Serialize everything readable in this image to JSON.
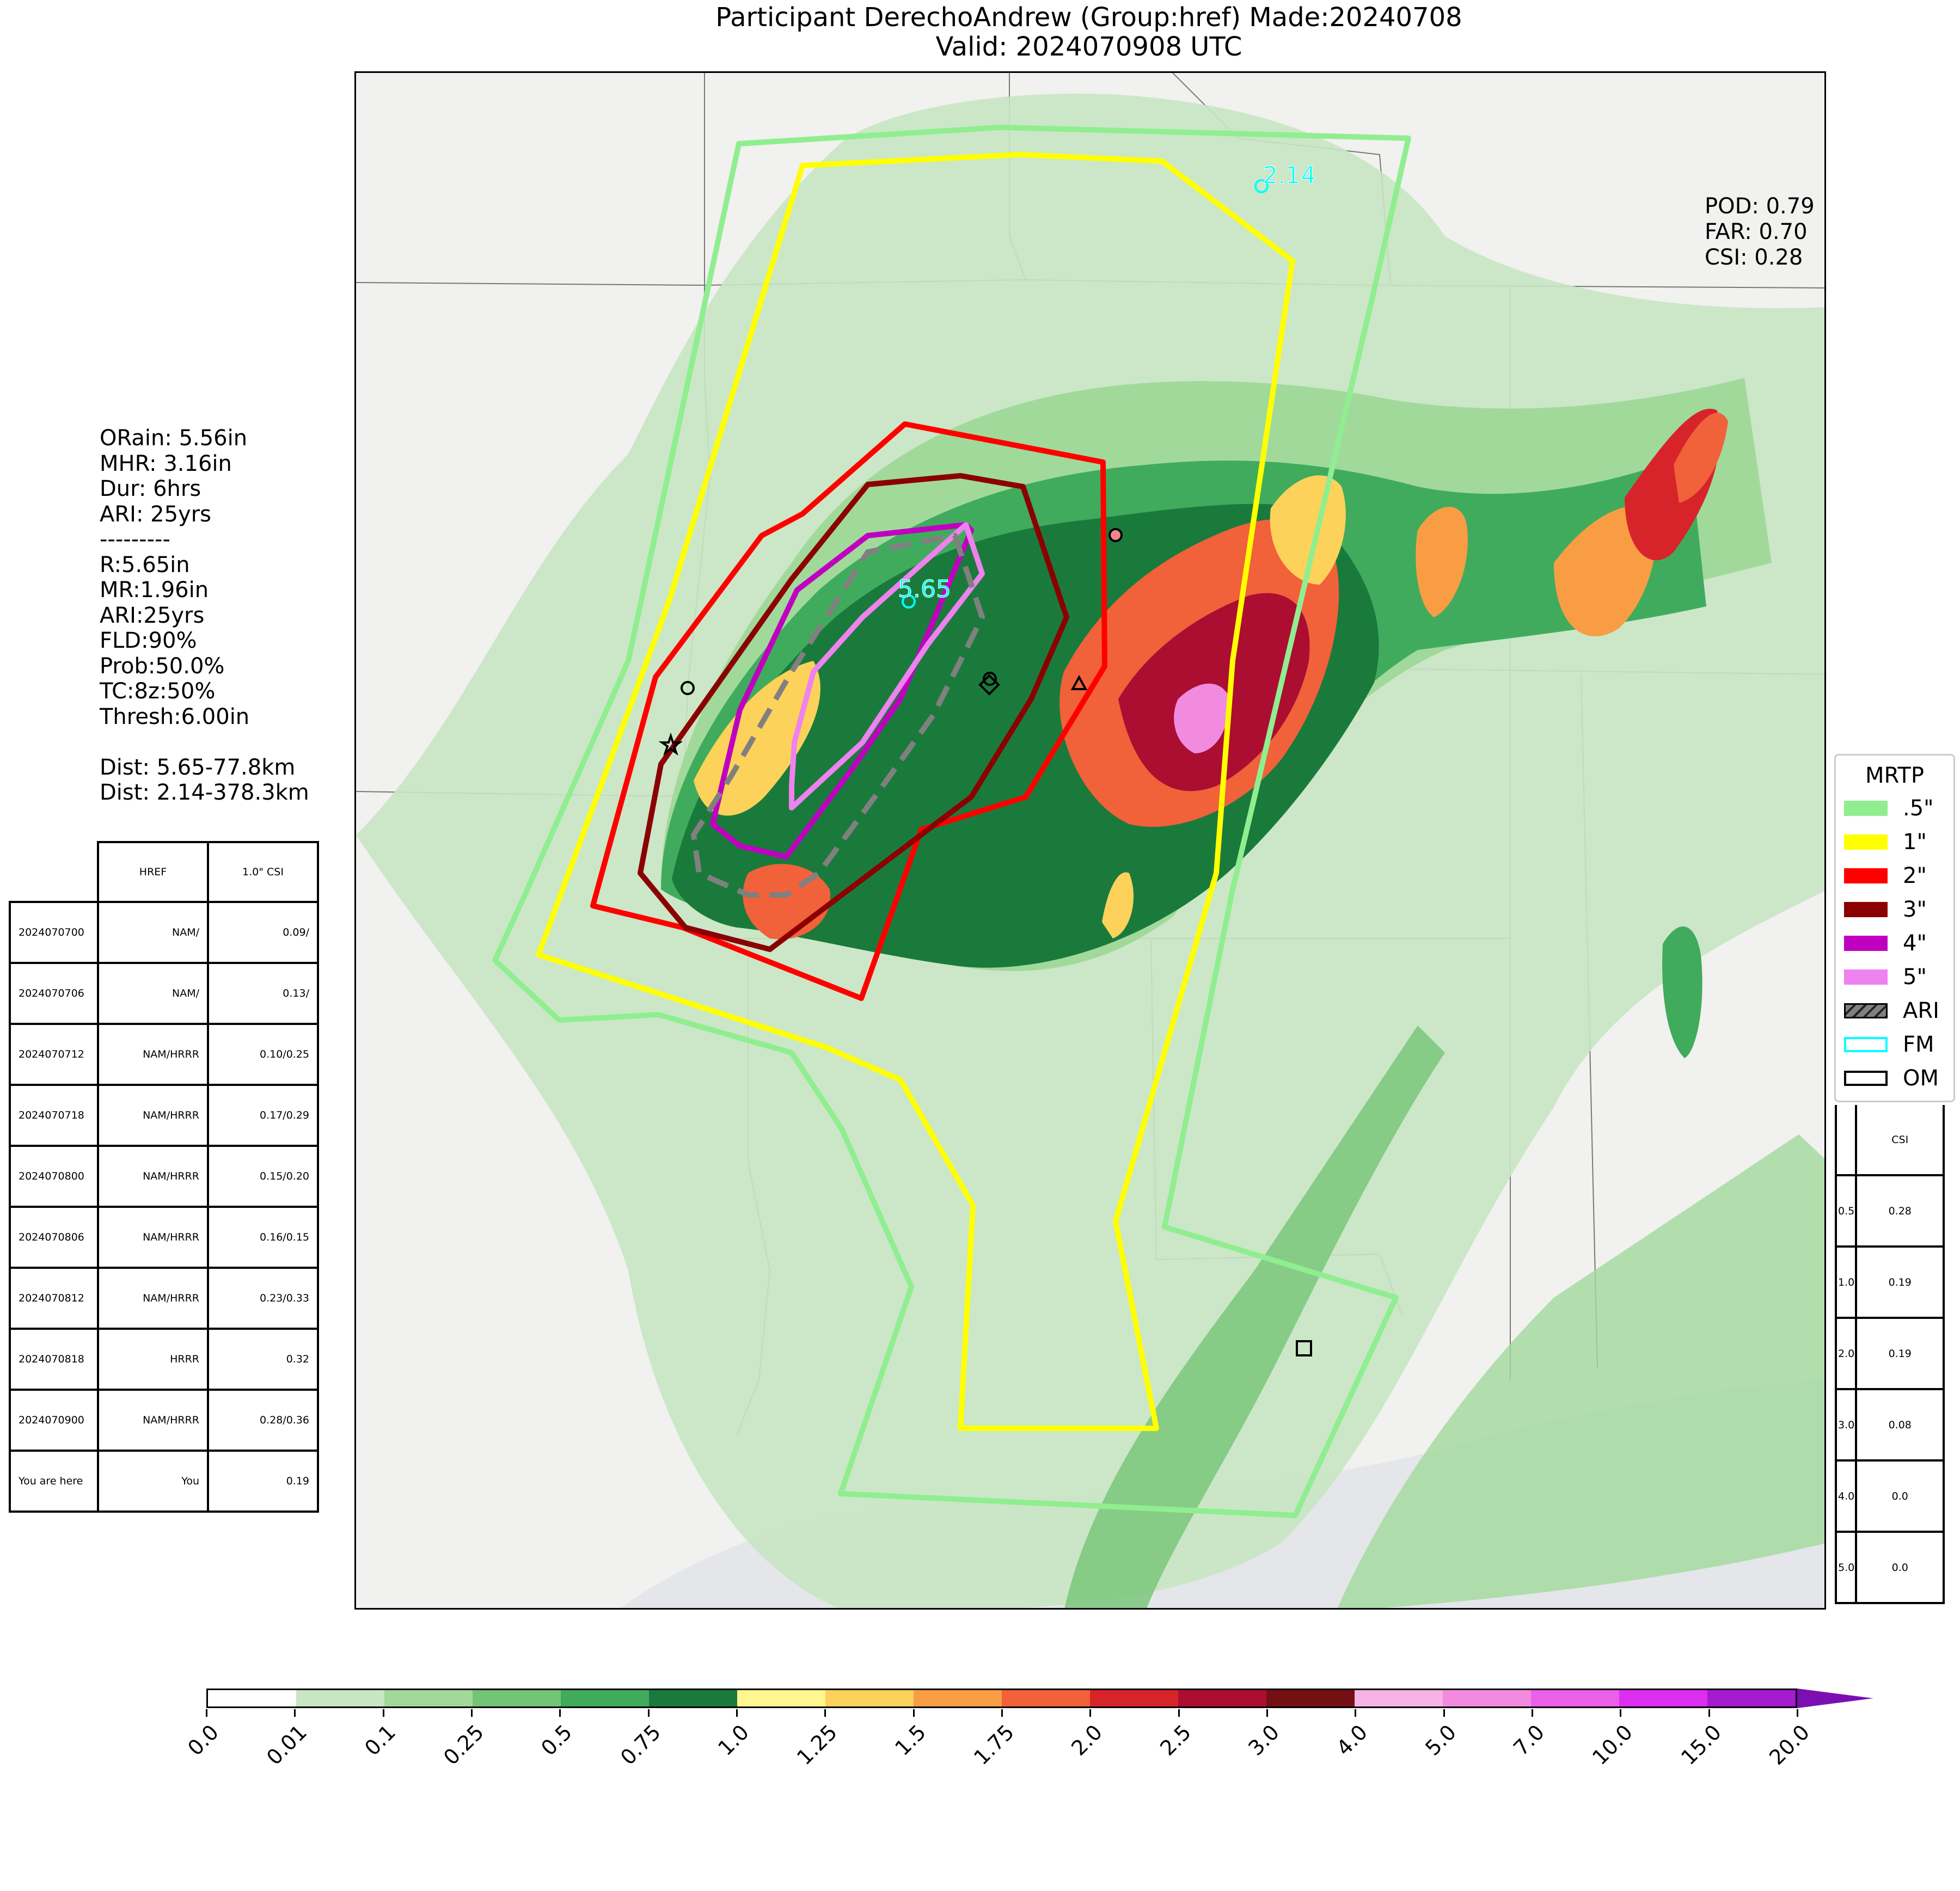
{
  "title": {
    "line1": "Participant DerechoAndrew (Group:href) Made:20240708",
    "line2": "Valid: 2024070908 UTC"
  },
  "stats": {
    "pod": "POD: 0.79",
    "far": "FAR: 0.70",
    "csi": "CSI: 0.28"
  },
  "left_info": [
    "ORain: 5.56in",
    "MHR: 3.16in",
    "Dur: 6hrs",
    "ARI: 25yrs",
    "---------",
    "R:5.65in",
    "MR:1.96in",
    "ARI:25yrs",
    "FLD:90%",
    "Prob:50.0%",
    "TC:8z:50%",
    "Thresh:6.00in",
    "",
    "Dist: 5.65-77.8km",
    "Dist: 2.14-378.3km"
  ],
  "runs_table": {
    "headers": [
      "",
      "HREF",
      "1.0\" CSI"
    ],
    "rows": [
      [
        "2024070700",
        "NAM/",
        "0.09/"
      ],
      [
        "2024070706",
        "NAM/",
        "0.13/"
      ],
      [
        "2024070712",
        "NAM/HRRR",
        "0.10/0.25"
      ],
      [
        "2024070718",
        "NAM/HRRR",
        "0.17/0.29"
      ],
      [
        "2024070800",
        "NAM/HRRR",
        "0.15/0.20"
      ],
      [
        "2024070806",
        "NAM/HRRR",
        "0.16/0.15"
      ],
      [
        "2024070812",
        "NAM/HRRR",
        "0.23/0.33"
      ],
      [
        "2024070818",
        "HRRR",
        "0.32"
      ],
      [
        "2024070900",
        "NAM/HRRR",
        "0.28/0.36"
      ],
      [
        "You are here",
        "You",
        "0.19"
      ]
    ]
  },
  "legend": {
    "title": "MRTP",
    "items": [
      {
        "label": ".5\"",
        "color": "#90ee90",
        "kind": "fill"
      },
      {
        "label": "1\"",
        "color": "#ffff00",
        "kind": "fill"
      },
      {
        "label": "2\"",
        "color": "#ff0000",
        "kind": "fill"
      },
      {
        "label": "3\"",
        "color": "#8b0000",
        "kind": "fill"
      },
      {
        "label": "4\"",
        "color": "#c000c0",
        "kind": "fill"
      },
      {
        "label": "5\"",
        "color": "#ee82ee",
        "kind": "fill"
      },
      {
        "label": "ARI",
        "color": "#808080",
        "kind": "hatch"
      },
      {
        "label": "FM",
        "color": "#00ffff",
        "kind": "outline"
      },
      {
        "label": "OM",
        "color": "#000000",
        "kind": "outline"
      }
    ]
  },
  "csi_table": {
    "header": "CSI",
    "rows": [
      [
        "0.5",
        "0.28"
      ],
      [
        "1.0",
        "0.19"
      ],
      [
        "2.0",
        "0.19"
      ],
      [
        "3.0",
        "0.08"
      ],
      [
        "4.0",
        "0.0"
      ],
      [
        "5.0",
        "0.0"
      ]
    ]
  },
  "map_labels": {
    "fm_far": "2.14",
    "fm_near": "5.65"
  },
  "colorbar": {
    "ticks": [
      "0.0",
      "0.01",
      "0.1",
      "0.25",
      "0.5",
      "0.75",
      "1.0",
      "1.25",
      "1.5",
      "1.75",
      "2.0",
      "2.5",
      "3.0",
      "4.0",
      "5.0",
      "7.0",
      "10.0",
      "15.0",
      "20.0"
    ],
    "colors": [
      "#ffffff",
      "#c7e6c2",
      "#a1d99b",
      "#74c476",
      "#41ab5d",
      "#1a7a3c",
      "#fff68f",
      "#fdd25a",
      "#f99d45",
      "#f1613a",
      "#d7242a",
      "#ab0e31",
      "#740f12",
      "#f7b2e6",
      "#f28be0",
      "#ec5fe8",
      "#dc2ef0",
      "#a41bd0"
    ]
  }
}
